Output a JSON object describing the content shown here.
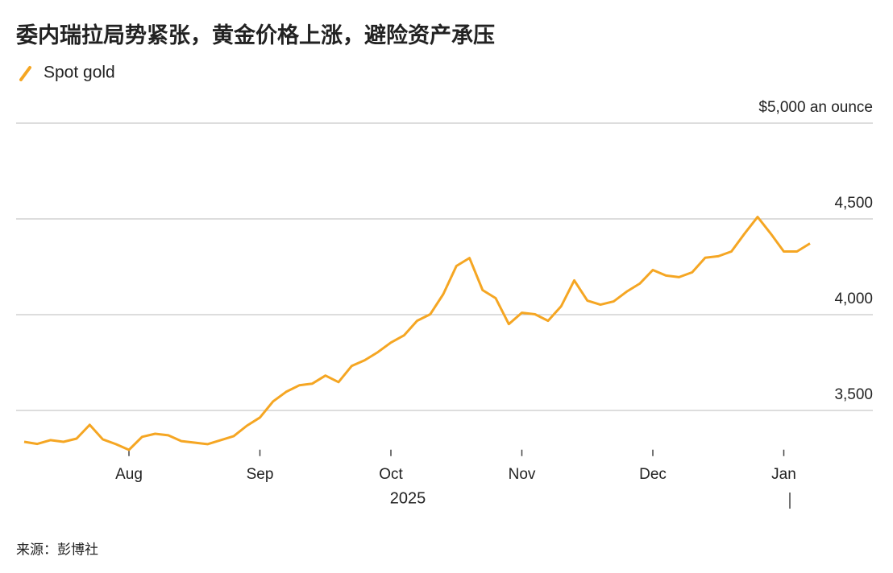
{
  "chart_data": {
    "type": "line",
    "title": "委内瑞拉局势紧张，黄金价格上涨，避险资产承压",
    "annotation": "2025",
    "source": "来源：彭博社",
    "categories": [
      null,
      null,
      null,
      null,
      null,
      null,
      null,
      null,
      "Aug",
      null,
      null,
      null,
      null,
      null,
      null,
      null,
      null,
      null,
      "Sep",
      null,
      null,
      null,
      null,
      null,
      null,
      null,
      null,
      null,
      "Oct",
      null,
      null,
      null,
      null,
      null,
      null,
      null,
      null,
      null,
      "Nov",
      null,
      null,
      null,
      null,
      null,
      null,
      null,
      null,
      null,
      "Dec",
      null,
      null,
      null,
      null,
      null,
      null,
      null,
      null,
      null,
      "Jan",
      null,
      null
    ],
    "series": [
      {
        "name": "Spot gold",
        "color": "#f5a623",
        "values": [
          3336,
          3325,
          3345,
          3336,
          3353,
          3425,
          3349,
          3324,
          3294,
          3362,
          3378,
          3370,
          3340,
          3332,
          3324,
          3345,
          3366,
          3420,
          3463,
          3547,
          3597,
          3631,
          3640,
          3682,
          3648,
          3732,
          3762,
          3804,
          3854,
          3892,
          3968,
          4002,
          4107,
          4254,
          4296,
          4128,
          4086,
          3951,
          4010,
          4002,
          3968,
          4044,
          4179,
          4073,
          4052,
          4069,
          4120,
          4162,
          4233,
          4204,
          4196,
          4221,
          4297,
          4305,
          4330,
          4423,
          4510,
          4423,
          4330,
          4330,
          4372
        ]
      }
    ],
    "ylim": [
      3270,
      5000
    ],
    "yticks": [
      {
        "value": 3500,
        "label": "3,500"
      },
      {
        "value": 4000,
        "label": "4,000"
      },
      {
        "value": 4500,
        "label": "4,500"
      },
      {
        "value": 5000,
        "label": "$5,000 an ounce"
      }
    ],
    "grid": true
  }
}
